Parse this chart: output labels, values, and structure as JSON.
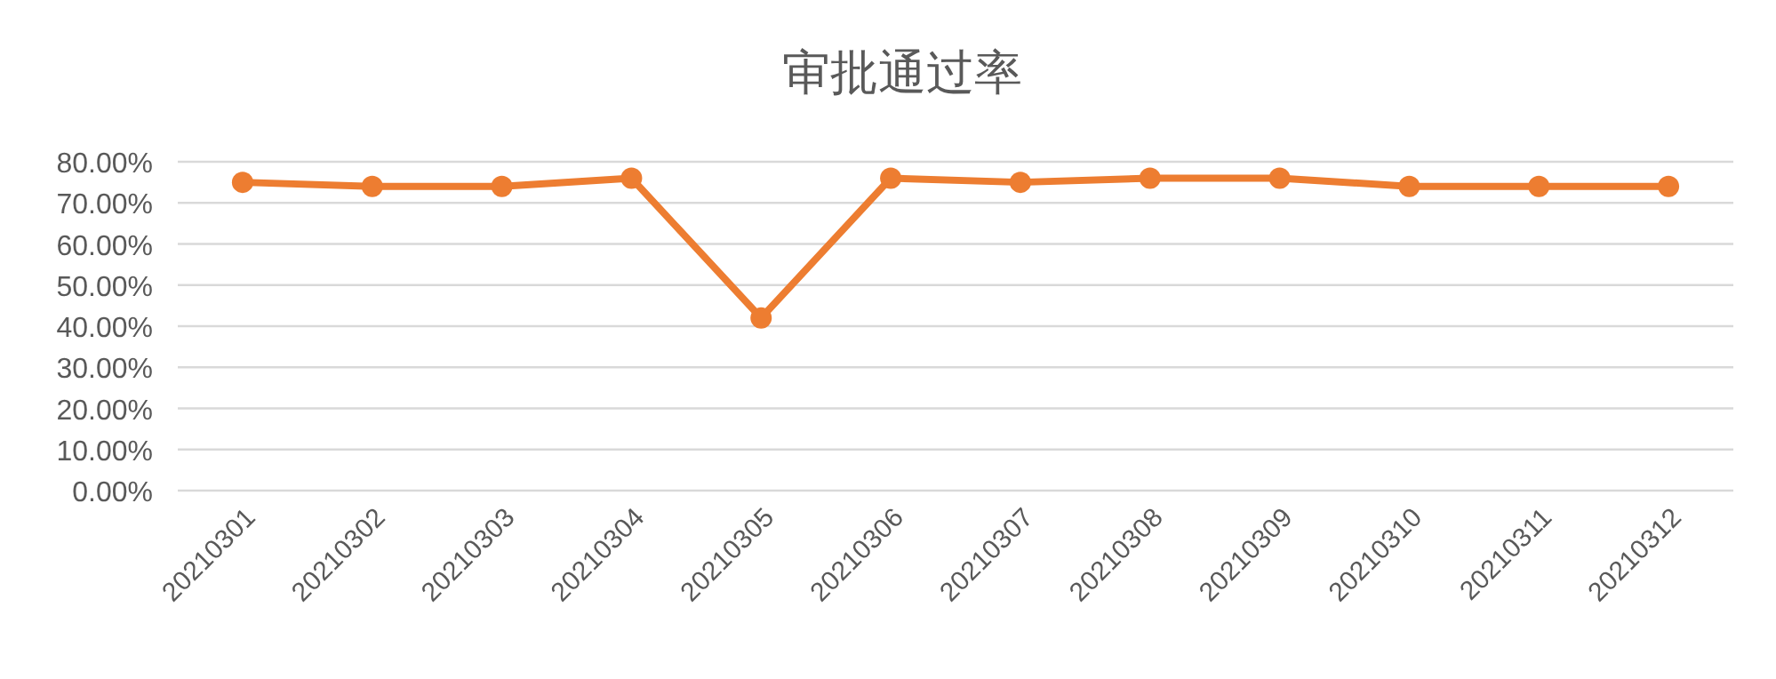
{
  "chart_data": {
    "type": "line",
    "title": "审批通过率",
    "categories": [
      "20210301",
      "20210302",
      "20210303",
      "20210304",
      "20210305",
      "20210306",
      "20210307",
      "20210308",
      "20210309",
      "20210310",
      "20210311",
      "20210312"
    ],
    "series": [
      {
        "color": "#ed7d31",
        "values": [
          75,
          74,
          74,
          76,
          42,
          76,
          75,
          76,
          76,
          74,
          74,
          74
        ]
      }
    ],
    "ylim": [
      0,
      80
    ],
    "yticks": [
      {
        "value": 0,
        "label": "0.00%"
      },
      {
        "value": 10,
        "label": "10.00%"
      },
      {
        "value": 20,
        "label": "20.00%"
      },
      {
        "value": 30,
        "label": "30.00%"
      },
      {
        "value": 40,
        "label": "40.00%"
      },
      {
        "value": 50,
        "label": "50.00%"
      },
      {
        "value": 60,
        "label": "60.00%"
      },
      {
        "value": 70,
        "label": "70.00%"
      },
      {
        "value": 80,
        "label": "80.00%"
      }
    ],
    "grid": "y",
    "marker": "circle"
  }
}
